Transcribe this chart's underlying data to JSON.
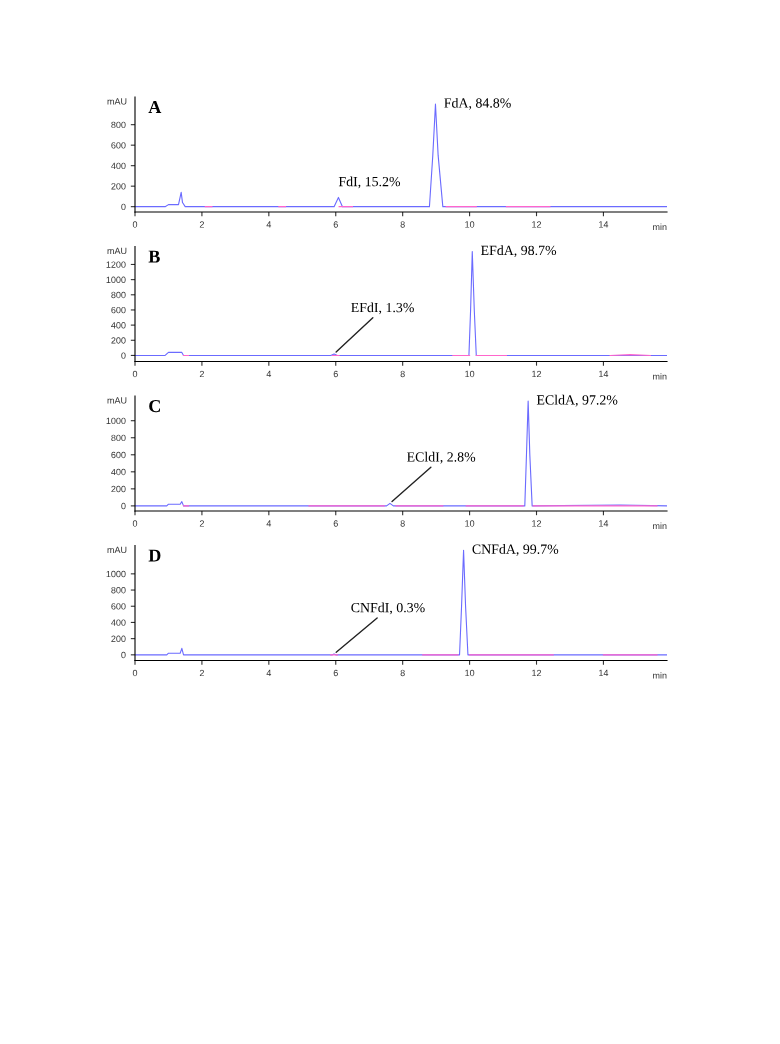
{
  "chart_data": [
    {
      "type": "line",
      "title": "A",
      "xlabel": "min",
      "ylabel": "mAU",
      "xlim": [
        0,
        15.9
      ],
      "xticks": [
        0,
        2,
        4,
        6,
        8,
        10,
        12,
        14
      ],
      "ylim": [
        -52,
        1070
      ],
      "yticks": [
        0,
        200,
        400,
        600,
        800
      ],
      "grid": false,
      "series": [
        {
          "color": "#6b6bff",
          "x": [
            0,
            0.9,
            1.0,
            1.3,
            1.38,
            1.42,
            1.5,
            5.95,
            6.08,
            6.2,
            8.8,
            8.9,
            8.98,
            9.06,
            9.2,
            15.9
          ],
          "values": [
            0,
            0,
            20,
            20,
            140,
            40,
            0,
            0,
            90,
            0,
            0,
            500,
            1000,
            500,
            0,
            0
          ]
        },
        {
          "color": "#ff66cc",
          "x": [
            2.1,
            2.3,
            2.31,
            4.3,
            4.5,
            4.51,
            6.1,
            6.5,
            6.51,
            9.3,
            10.2,
            10.21,
            11.1,
            12.4
          ],
          "values": [
            0,
            0,
            null,
            0,
            0,
            null,
            0,
            0,
            null,
            0,
            0,
            null,
            0,
            0
          ]
        }
      ],
      "annotations": [
        {
          "text": "FdI, 15.2%",
          "x": 6.08,
          "y": 90
        },
        {
          "text": "FdA, 84.8%",
          "x": 8.98,
          "y": 1000
        }
      ]
    },
    {
      "type": "line",
      "title": "B",
      "xlabel": "min",
      "ylabel": "mAU",
      "xlim": [
        0,
        15.9
      ],
      "xticks": [
        0,
        2,
        4,
        6,
        8,
        10,
        12,
        14
      ],
      "ylim": [
        -80,
        1437
      ],
      "yticks": [
        0,
        200,
        400,
        600,
        800,
        1000,
        1200
      ],
      "grid": false,
      "series": [
        {
          "color": "#6b6bff",
          "x": [
            0,
            0.9,
            1.0,
            1.4,
            1.45,
            5.85,
            5.95,
            6.05,
            9.98,
            10.03,
            10.08,
            10.14,
            10.2,
            15.9
          ],
          "values": [
            0,
            0,
            40,
            40,
            0,
            0,
            20,
            0,
            0,
            600,
            1370,
            600,
            0,
            0
          ]
        },
        {
          "color": "#ff66cc",
          "x": [
            1.45,
            1.6,
            1.61,
            5.9,
            6.1,
            6.11,
            9.5,
            10.0,
            10.01,
            10.2,
            11.1,
            11.11,
            14.2,
            14.8,
            15.4
          ],
          "values": [
            0,
            0,
            null,
            0,
            0,
            null,
            0,
            0,
            null,
            0,
            0,
            null,
            0,
            10,
            0
          ]
        }
      ],
      "annotations": [
        {
          "text": "EFdI, 1.3%",
          "x": 5.95,
          "y": 20
        },
        {
          "text": "EFdA, 98.7%",
          "x": 10.08,
          "y": 1370
        }
      ]
    },
    {
      "type": "line",
      "title": "C",
      "xlabel": "min",
      "ylabel": "mAU",
      "xlim": [
        0,
        15.9
      ],
      "xticks": [
        0,
        2,
        4,
        6,
        8,
        10,
        12,
        14
      ],
      "ylim": [
        -60,
        1290
      ],
      "yticks": [
        0,
        200,
        400,
        600,
        800,
        1000
      ],
      "grid": false,
      "series": [
        {
          "color": "#6b6bff",
          "x": [
            0,
            0.95,
            1.0,
            1.35,
            1.4,
            1.45,
            7.52,
            7.62,
            7.72,
            11.65,
            11.7,
            11.75,
            11.8,
            11.87,
            14.5,
            15.9
          ],
          "values": [
            0,
            0,
            20,
            20,
            50,
            0,
            0,
            30,
            0,
            0,
            600,
            1230,
            600,
            0,
            10,
            0
          ]
        },
        {
          "color": "#ff66cc",
          "x": [
            1.45,
            1.6,
            1.61,
            5.2,
            7.45,
            7.46,
            7.8,
            9.2,
            9.21,
            9.9,
            11.6,
            11.61,
            11.9,
            15.6
          ],
          "values": [
            0,
            0,
            null,
            0,
            0,
            null,
            0,
            0,
            null,
            0,
            0,
            null,
            0,
            0
          ]
        }
      ],
      "annotations": [
        {
          "text": "ECldI, 2.8%",
          "x": 7.62,
          "y": 30
        },
        {
          "text": "ECldA, 97.2%",
          "x": 11.75,
          "y": 1230
        }
      ]
    },
    {
      "type": "line",
      "title": "D",
      "xlabel": "min",
      "ylabel": "mAU",
      "xlim": [
        0,
        15.9
      ],
      "xticks": [
        0,
        2,
        4,
        6,
        8,
        10,
        12,
        14
      ],
      "ylim": [
        -70,
        1350
      ],
      "yticks": [
        0,
        200,
        400,
        600,
        800,
        1000
      ],
      "grid": false,
      "series": [
        {
          "color": "#6b6bff",
          "x": [
            0,
            0.95,
            1.0,
            1.35,
            1.4,
            1.45,
            5.9,
            5.95,
            6.0,
            9.7,
            9.76,
            9.82,
            9.88,
            9.95,
            15.9
          ],
          "values": [
            0,
            0,
            20,
            20,
            80,
            0,
            0,
            10,
            0,
            0,
            600,
            1290,
            600,
            0,
            0
          ]
        },
        {
          "color": "#ff66cc",
          "x": [
            5.85,
            6.05,
            6.06,
            8.6,
            9.65,
            9.66,
            10.0,
            12.5,
            12.51,
            14.0,
            15.6
          ],
          "values": [
            0,
            0,
            null,
            0,
            0,
            null,
            0,
            0,
            null,
            0,
            0
          ]
        }
      ],
      "annotations": [
        {
          "text": "CNFdI, 0.3%",
          "x": 5.95,
          "y": 10
        },
        {
          "text": "CNFdA, 99.7%",
          "x": 9.82,
          "y": 1290
        }
      ]
    }
  ]
}
